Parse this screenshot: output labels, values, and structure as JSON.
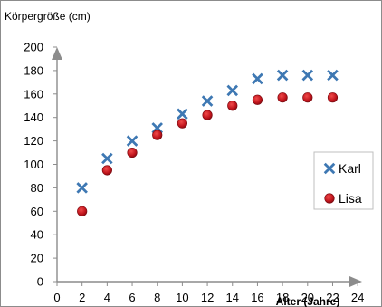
{
  "chart_data": {
    "type": "scatter",
    "ylabel": "Körpergröße (cm)",
    "xlabel": "Alter (Jahre)",
    "xlim": [
      0,
      24
    ],
    "ylim": [
      0,
      200
    ],
    "x_ticks": [
      "0",
      "2",
      "4",
      "6",
      "8",
      "10",
      "12",
      "14",
      "16",
      "18",
      "20",
      "22",
      "24"
    ],
    "y_ticks": [
      "0",
      "20",
      "40",
      "60",
      "80",
      "100",
      "120",
      "140",
      "160",
      "180",
      "200"
    ],
    "grid": false,
    "legend_position": "right",
    "series": [
      {
        "name": "Karl",
        "marker": "x",
        "color": "#3e78b3",
        "x": [
          2,
          4,
          6,
          8,
          10,
          12,
          14,
          16,
          18,
          20,
          22
        ],
        "y": [
          80,
          105,
          120,
          131,
          143,
          154,
          163,
          173,
          176,
          176,
          176
        ]
      },
      {
        "name": "Lisa",
        "marker": "circle",
        "color": "#c0141c",
        "x": [
          2,
          4,
          6,
          8,
          10,
          12,
          14,
          16,
          18,
          20,
          22
        ],
        "y": [
          60,
          95,
          110,
          125,
          135,
          142,
          150,
          155,
          157,
          157,
          157
        ]
      }
    ]
  }
}
